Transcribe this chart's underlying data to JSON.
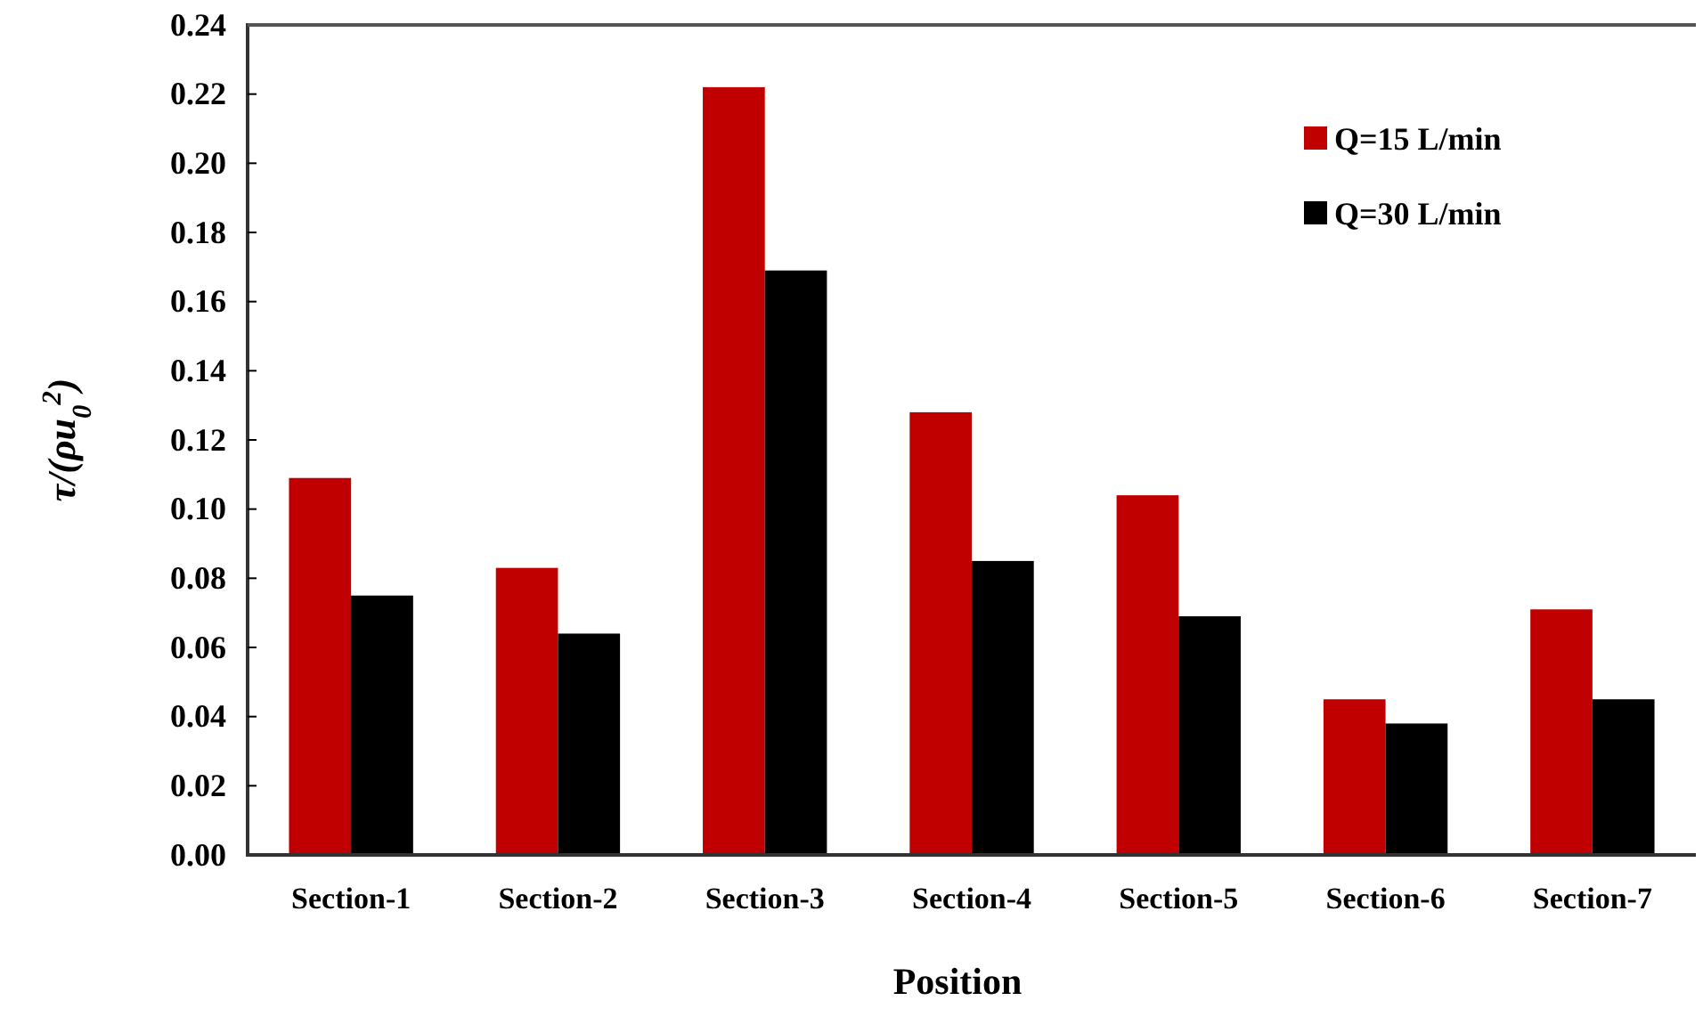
{
  "chart_data": {
    "type": "bar",
    "xlabel": "Position",
    "ylabel": "τ/(ρu$_{0}$$^{2}$)",
    "categories": [
      "Section-1",
      "Section-2",
      "Section-3",
      "Section-4",
      "Section-5",
      "Section-6",
      "Section-7"
    ],
    "series": [
      {
        "name": "Q=15 L/min",
        "color": "#c00000",
        "values": [
          0.109,
          0.083,
          0.222,
          0.128,
          0.104,
          0.045,
          0.071
        ]
      },
      {
        "name": "Q=30 L/min",
        "color": "#000000",
        "values": [
          0.075,
          0.064,
          0.169,
          0.085,
          0.069,
          0.038,
          0.045
        ]
      }
    ],
    "ylim": [
      0,
      0.24
    ],
    "yticks": [
      {
        "value": 0,
        "label": "0.00"
      },
      {
        "value": 0.02,
        "label": "0.02"
      },
      {
        "value": 0.04,
        "label": "0.04"
      },
      {
        "value": 0.06,
        "label": "0.06"
      },
      {
        "value": 0.08,
        "label": "0.08"
      },
      {
        "value": 0.1,
        "label": "0.10"
      },
      {
        "value": 0.12,
        "label": "0.12"
      },
      {
        "value": 0.14,
        "label": "0.14"
      },
      {
        "value": 0.16,
        "label": "0.16"
      },
      {
        "value": 0.18,
        "label": "0.18"
      },
      {
        "value": 0.2,
        "label": "0.20"
      },
      {
        "value": 0.22,
        "label": "0.22"
      },
      {
        "value": 0.24,
        "label": "0.24"
      }
    ],
    "grid": false,
    "legend": "top right"
  }
}
